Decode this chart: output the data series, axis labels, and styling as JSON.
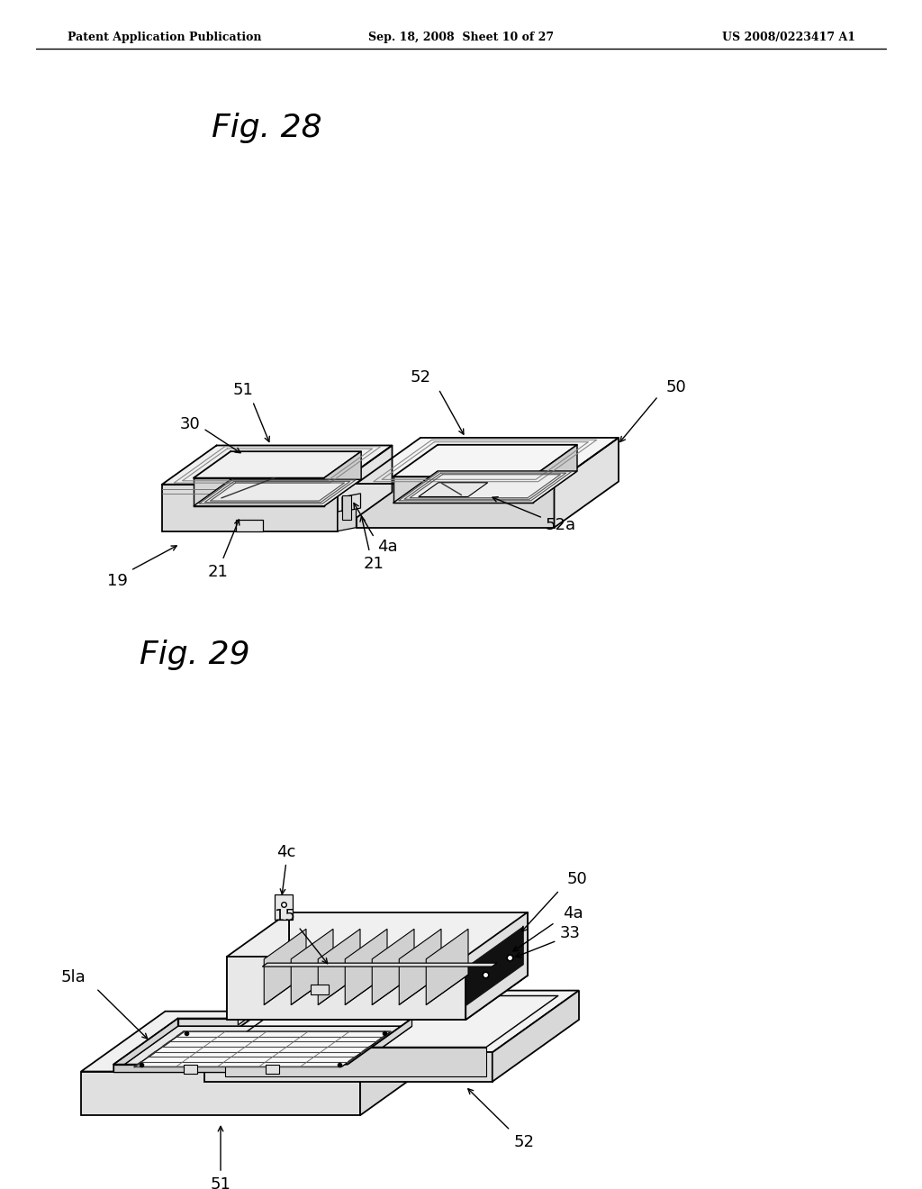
{
  "background_color": "#ffffff",
  "header_left": "Patent Application Publication",
  "header_mid": "Sep. 18, 2008  Sheet 10 of 27",
  "header_right": "US 2008/0223417 A1",
  "fig28_label": "Fig. 28",
  "fig29_label": "Fig. 29",
  "line_color": "#000000",
  "face_color_top": "#f5f5f5",
  "face_color_side": "#e0e0e0",
  "face_color_dark": "#cccccc"
}
